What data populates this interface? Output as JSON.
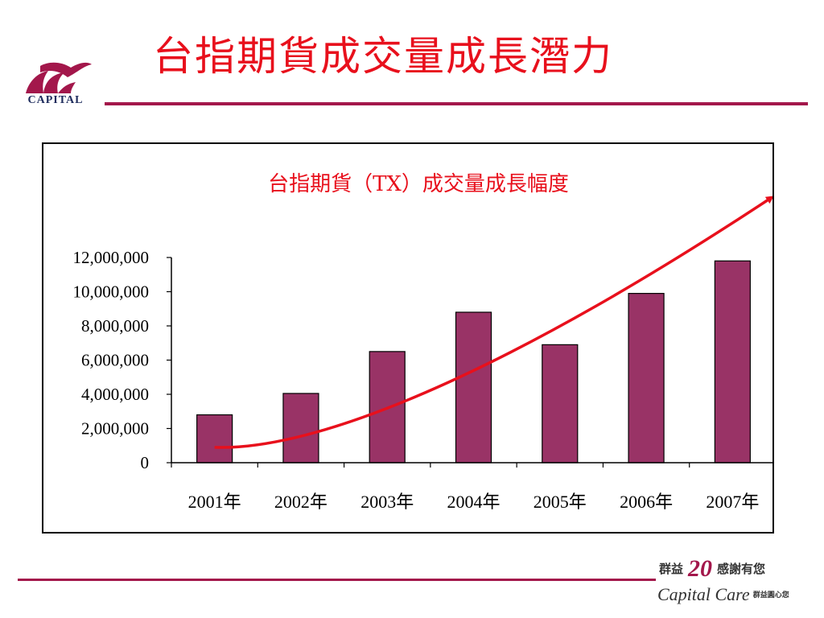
{
  "slide": {
    "title": "台指期貨成交量成長潛力",
    "logo_text": "CAPITAL",
    "footer": {
      "left": "群益",
      "number": "20",
      "right": "感謝有您",
      "brand": "Capital Care",
      "tagline": "群益圓心您"
    }
  },
  "colors": {
    "accent": "#a3174b",
    "bar": "#993366",
    "title": "#e8101c",
    "trend": "#e8101c"
  },
  "chart_data": {
    "type": "bar",
    "title": "台指期貨（TX）成交量成長幅度",
    "categories": [
      "2001年",
      "2002年",
      "2003年",
      "2004年",
      "2005年",
      "2006年",
      "2007年"
    ],
    "values": [
      2800000,
      4050000,
      6500000,
      8800000,
      6900000,
      9900000,
      11800000
    ],
    "ylim": [
      0,
      12000000
    ],
    "yticks": [
      0,
      2000000,
      4000000,
      6000000,
      8000000,
      10000000,
      12000000
    ],
    "ytick_labels": [
      "0",
      "2,000,000",
      "4,000,000",
      "6,000,000",
      "8,000,000",
      "10,000,000",
      "12,000,000"
    ],
    "grid": false,
    "legend": "none",
    "annotations": [
      {
        "type": "trend-arrow",
        "shape": "curve",
        "points": [
          [
            0,
            900000
          ],
          [
            1,
            700000
          ],
          [
            3,
            4000000
          ],
          [
            6.45,
            15500000
          ]
        ]
      }
    ]
  }
}
